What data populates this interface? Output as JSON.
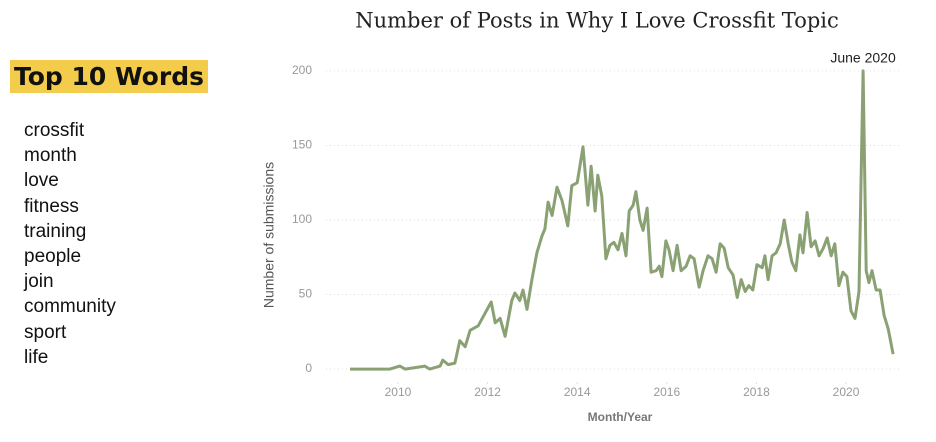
{
  "panel": {
    "title": "Top 10 Words",
    "words": [
      "crossfit",
      "month",
      "love",
      "fitness",
      "training",
      "people",
      "join",
      "community",
      "sport",
      "life"
    ]
  },
  "chart_data": {
    "type": "line",
    "title": "Number of Posts in Why I Love Crossfit Topic",
    "x_label": "Month/Year",
    "y_label": "Number of submissions",
    "annotation": "June 2020",
    "color": "#8aa173",
    "grid": true,
    "xlim": [
      2008.8,
      2021.2
    ],
    "xticks": [
      2010,
      2012,
      2014,
      2016,
      2018,
      2020
    ],
    "ylim": [
      -6,
      210
    ],
    "yticks": [
      0,
      50,
      100,
      150,
      200
    ],
    "x": [
      2008.93,
      2009.82,
      2010.04,
      2010.16,
      2010.38,
      2010.6,
      2010.71,
      2010.94,
      2011.0,
      2011.12,
      2011.27,
      2011.38,
      2011.5,
      2011.61,
      2011.79,
      2012.08,
      2012.17,
      2012.28,
      2012.39,
      2012.54,
      2012.61,
      2012.72,
      2012.79,
      2012.88,
      2012.99,
      2013.1,
      2013.21,
      2013.28,
      2013.35,
      2013.44,
      2013.55,
      2013.66,
      2013.79,
      2013.88,
      2014.0,
      2014.13,
      2014.24,
      2014.31,
      2014.4,
      2014.46,
      2014.55,
      2014.64,
      2014.73,
      2014.82,
      2014.91,
      2015.0,
      2015.09,
      2015.16,
      2015.25,
      2015.31,
      2015.4,
      2015.47,
      2015.56,
      2015.65,
      2015.76,
      2015.83,
      2015.89,
      2015.98,
      2016.05,
      2016.14,
      2016.23,
      2016.32,
      2016.43,
      2016.52,
      2016.61,
      2016.72,
      2016.81,
      2016.92,
      2017.01,
      2017.1,
      2017.19,
      2017.28,
      2017.37,
      2017.48,
      2017.57,
      2017.66,
      2017.75,
      2017.83,
      2017.92,
      2018.01,
      2018.13,
      2018.19,
      2018.26,
      2018.35,
      2018.44,
      2018.53,
      2018.62,
      2018.71,
      2018.79,
      2018.88,
      2018.97,
      2019.04,
      2019.13,
      2019.22,
      2019.31,
      2019.4,
      2019.49,
      2019.58,
      2019.67,
      2019.75,
      2019.84,
      2019.93,
      2020.02,
      2020.11,
      2020.2,
      2020.29,
      2020.38,
      2020.45,
      2020.51,
      2020.58,
      2020.67,
      2020.76,
      2020.85,
      2020.94,
      2021.05
    ],
    "values": [
      0,
      0,
      2,
      0,
      1,
      2,
      0,
      2,
      6,
      3,
      4,
      19,
      15,
      26,
      29,
      45,
      31,
      34,
      22,
      46,
      51,
      46,
      53,
      40,
      60,
      78,
      89,
      94,
      112,
      103,
      122,
      113,
      96,
      123,
      125,
      149,
      110,
      136,
      106,
      130,
      116,
      74,
      83,
      85,
      80,
      91,
      76,
      106,
      110,
      119,
      100,
      93,
      108,
      65,
      66,
      69,
      62,
      86,
      80,
      66,
      83,
      66,
      69,
      76,
      74,
      55,
      66,
      76,
      74,
      65,
      84,
      81,
      68,
      63,
      48,
      60,
      52,
      56,
      53,
      70,
      68,
      76,
      60,
      76,
      78,
      84,
      100,
      84,
      72,
      66,
      90,
      78,
      105,
      82,
      86,
      76,
      81,
      88,
      76,
      84,
      56,
      65,
      62,
      39,
      34,
      52,
      200,
      66,
      58,
      66,
      53,
      53,
      36,
      27,
      10
    ]
  }
}
